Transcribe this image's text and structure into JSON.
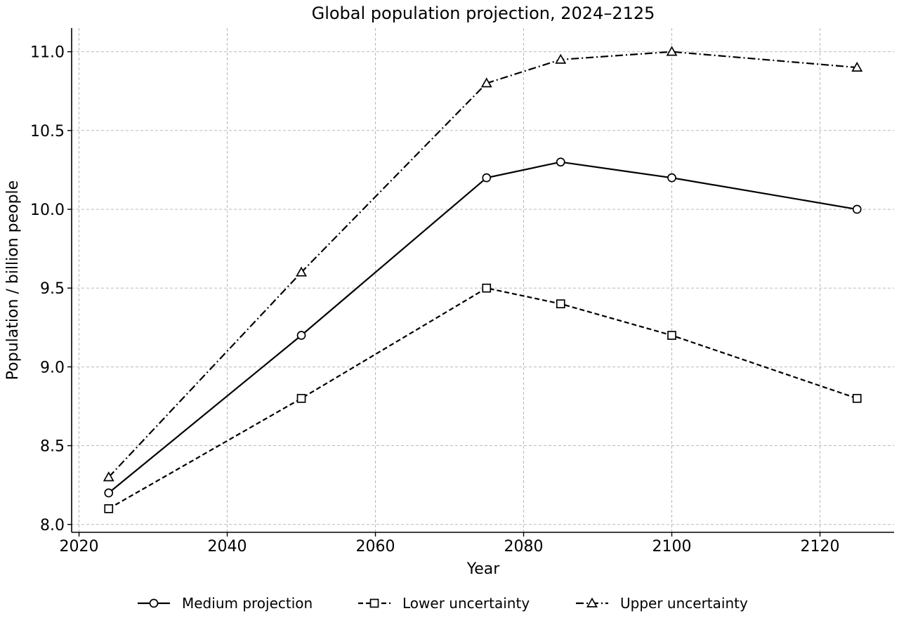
{
  "chart_data": {
    "type": "line",
    "title": "Global population projection, 2024–2125",
    "xlabel": "Year",
    "ylabel": "Population / billion people",
    "xlim": [
      2019,
      2130
    ],
    "ylim": [
      7.95,
      11.15
    ],
    "x_ticks": [
      2020,
      2040,
      2060,
      2080,
      2100,
      2120
    ],
    "x_tick_labels": [
      "2020",
      "2040",
      "2060",
      "2080",
      "2100",
      "2120"
    ],
    "y_ticks": [
      8.0,
      8.5,
      9.0,
      9.5,
      10.0,
      10.5,
      11.0
    ],
    "y_tick_labels": [
      "8.0",
      "8.5",
      "9.0",
      "9.5",
      "10.0",
      "10.5",
      "11.0"
    ],
    "grid": true,
    "legend_position": "bottom-center",
    "x": [
      2024,
      2050,
      2075,
      2085,
      2100,
      2125
    ],
    "series": [
      {
        "name": "Medium projection",
        "values": [
          8.2,
          9.2,
          10.2,
          10.3,
          10.2,
          10.0
        ],
        "line_style": "solid",
        "marker": "circle",
        "color": "#000000"
      },
      {
        "name": "Lower uncertainty",
        "values": [
          8.1,
          8.8,
          9.5,
          9.4,
          9.2,
          8.8
        ],
        "line_style": "dashed",
        "marker": "square",
        "color": "#000000"
      },
      {
        "name": "Upper uncertainty",
        "values": [
          8.3,
          9.6,
          10.8,
          10.95,
          11.0,
          10.9
        ],
        "line_style": "dash-dot",
        "marker": "triangle",
        "color": "#000000"
      }
    ]
  }
}
